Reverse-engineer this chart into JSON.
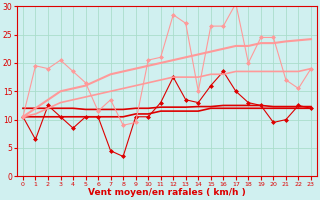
{
  "background_color": "#d0f0f0",
  "grid_color": "#aaddcc",
  "x_label": "Vent moyen/en rafales ( km/h )",
  "xlim": [
    -0.5,
    23.5
  ],
  "ylim": [
    0,
    30
  ],
  "yticks": [
    0,
    5,
    10,
    15,
    20,
    25,
    30
  ],
  "xticks": [
    0,
    1,
    2,
    3,
    4,
    5,
    6,
    7,
    8,
    9,
    10,
    11,
    12,
    13,
    14,
    15,
    16,
    17,
    18,
    19,
    20,
    21,
    22,
    23
  ],
  "series": [
    {
      "y": [
        10.5,
        6.5,
        12.5,
        10.5,
        8.5,
        10.5,
        10.5,
        4.5,
        3.5,
        10.5,
        10.5,
        13.0,
        17.5,
        13.5,
        13.0,
        16.0,
        18.5,
        15.0,
        13.0,
        12.5,
        9.5,
        10.0,
        12.5,
        12.0
      ],
      "color": "#dd0000",
      "marker": "D",
      "markersize": 2.0,
      "linewidth": 0.8,
      "alpha": 1.0
    },
    {
      "y": [
        12.0,
        12.0,
        12.0,
        12.0,
        12.0,
        11.8,
        11.8,
        11.8,
        11.8,
        12.0,
        12.0,
        12.2,
        12.2,
        12.2,
        12.3,
        12.3,
        12.5,
        12.5,
        12.5,
        12.5,
        12.3,
        12.3,
        12.3,
        12.3
      ],
      "color": "#dd0000",
      "marker": null,
      "markersize": 0,
      "linewidth": 1.2,
      "alpha": 1.0
    },
    {
      "y": [
        10.5,
        10.5,
        10.5,
        10.5,
        10.5,
        10.5,
        10.5,
        10.5,
        10.5,
        11.0,
        11.0,
        11.5,
        11.5,
        11.5,
        11.5,
        12.0,
        12.0,
        12.0,
        12.0,
        12.0,
        12.0,
        12.0,
        12.0,
        12.0
      ],
      "color": "#dd0000",
      "marker": null,
      "markersize": 0,
      "linewidth": 1.2,
      "alpha": 1.0
    },
    {
      "y": [
        10.5,
        19.5,
        19.0,
        20.5,
        18.5,
        16.5,
        11.5,
        13.5,
        9.0,
        9.5,
        20.5,
        21.0,
        28.5,
        27.0,
        15.0,
        26.5,
        26.5,
        30.5,
        20.0,
        24.5,
        24.5,
        17.0,
        15.5,
        19.0
      ],
      "color": "#ff9999",
      "marker": "D",
      "markersize": 2.0,
      "linewidth": 0.8,
      "alpha": 1.0
    },
    {
      "y": [
        10.5,
        12.0,
        13.5,
        15.0,
        15.5,
        16.0,
        17.0,
        18.0,
        18.5,
        19.0,
        19.5,
        20.0,
        20.5,
        21.0,
        21.5,
        22.0,
        22.5,
        23.0,
        23.0,
        23.5,
        23.5,
        23.8,
        24.0,
        24.2
      ],
      "color": "#ff9999",
      "marker": null,
      "markersize": 0,
      "linewidth": 1.5,
      "alpha": 1.0
    },
    {
      "y": [
        10.5,
        11.0,
        12.0,
        13.0,
        13.5,
        14.0,
        14.5,
        15.0,
        15.5,
        16.0,
        16.5,
        17.0,
        17.5,
        17.5,
        17.5,
        18.0,
        18.0,
        18.5,
        18.5,
        18.5,
        18.5,
        18.5,
        18.5,
        19.0
      ],
      "color": "#ff9999",
      "marker": null,
      "markersize": 0,
      "linewidth": 1.2,
      "alpha": 1.0
    }
  ]
}
